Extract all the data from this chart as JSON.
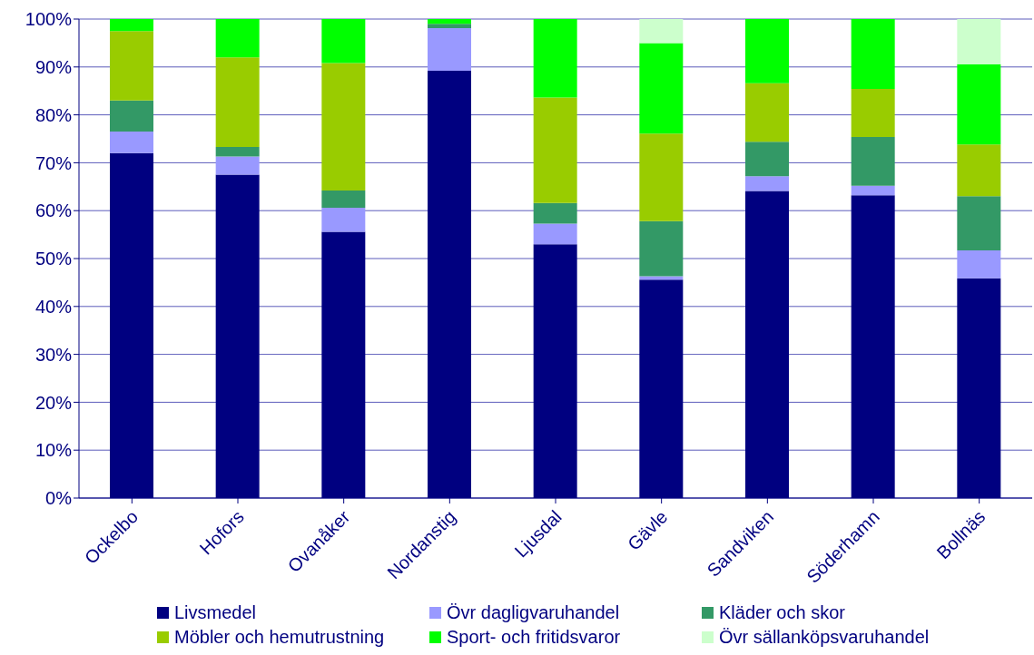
{
  "chart_data": {
    "type": "bar",
    "stacked": true,
    "grid": "y",
    "legend": "bottom",
    "categories": [
      "Ockelbo",
      "Hofors",
      "Ovanåker",
      "Nordanstig",
      "Ljusdal",
      "Gävle",
      "Sandviken",
      "Söderhamn",
      "Bollnäs"
    ],
    "ylim": [
      0,
      100
    ],
    "yticks": [
      {
        "value": 0,
        "label": "0%"
      },
      {
        "value": 10,
        "label": "10%"
      },
      {
        "value": 20,
        "label": "20%"
      },
      {
        "value": 30,
        "label": "30%"
      },
      {
        "value": 40,
        "label": "40%"
      },
      {
        "value": 50,
        "label": "50%"
      },
      {
        "value": 60,
        "label": "60%"
      },
      {
        "value": 70,
        "label": "70%"
      },
      {
        "value": 80,
        "label": "80%"
      },
      {
        "value": 90,
        "label": "90%"
      },
      {
        "value": 100,
        "label": "100%"
      }
    ],
    "series": [
      {
        "name": "Livsmedel",
        "color": "#000080",
        "values": [
          72,
          67.5,
          55.6,
          89.2,
          53,
          45.6,
          64.1,
          63.2,
          45.9
        ]
      },
      {
        "name": "Övr dagligvaruhandel",
        "color": "#9999ff",
        "values": [
          4.5,
          3.8,
          5,
          8.9,
          4.3,
          0.7,
          3.1,
          2,
          5.8
        ]
      },
      {
        "name": "Kläder och skor",
        "color": "#339966",
        "values": [
          6.5,
          2,
          3.6,
          0.9,
          4.3,
          11.5,
          7.2,
          10.2,
          11.3
        ]
      },
      {
        "name": "Möbler och hemutrustning",
        "color": "#99cc00",
        "values": [
          14.5,
          18.7,
          26.6,
          0,
          22,
          18.3,
          12.2,
          10,
          10.8
        ]
      },
      {
        "name": "Sport- och fritidsvaror",
        "color": "#00ff00",
        "values": [
          2.5,
          8,
          9.2,
          1,
          16.4,
          18.9,
          13.4,
          14.6,
          16.8
        ]
      },
      {
        "name": "Övr sällanköpsvaruhandel",
        "color": "#ccffcc",
        "values": [
          0,
          0,
          0,
          0,
          0,
          5,
          0,
          0,
          9.4
        ]
      }
    ]
  }
}
